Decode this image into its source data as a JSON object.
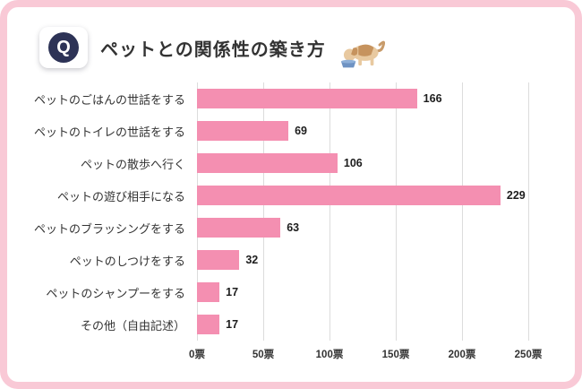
{
  "header": {
    "q_label": "Q",
    "title": "ペットとの関係性の築き方",
    "dog_icon": "dog-eating-from-bowl"
  },
  "chart_data": {
    "type": "bar",
    "orientation": "horizontal",
    "title": "ペットとの関係性の築き方",
    "categories": [
      "ペットのごはんの世話をする",
      "ペットのトイレの世話をする",
      "ペットの散歩へ行く",
      "ペットの遊び相手になる",
      "ペットのブラッシングをする",
      "ペットのしつけをする",
      "ペットのシャンプーをする",
      "その他（自由記述）"
    ],
    "values": [
      166,
      69,
      106,
      229,
      63,
      32,
      17,
      17
    ],
    "unit": "票",
    "xlim": [
      0,
      250
    ],
    "x_tick_values": [
      0,
      50,
      100,
      150,
      200,
      250
    ],
    "x_tick_labels": [
      "0票",
      "50票",
      "100票",
      "150票",
      "200票",
      "250票"
    ],
    "grid": true,
    "legend": false,
    "bar_color": "#f48fb1"
  },
  "colors": {
    "frame_border": "#f9c9d6",
    "badge_circle": "#2d3356",
    "badge_text": "#ffffff",
    "bar": "#f48fb1",
    "gridline": "#dcdcdc",
    "text": "#333333"
  }
}
